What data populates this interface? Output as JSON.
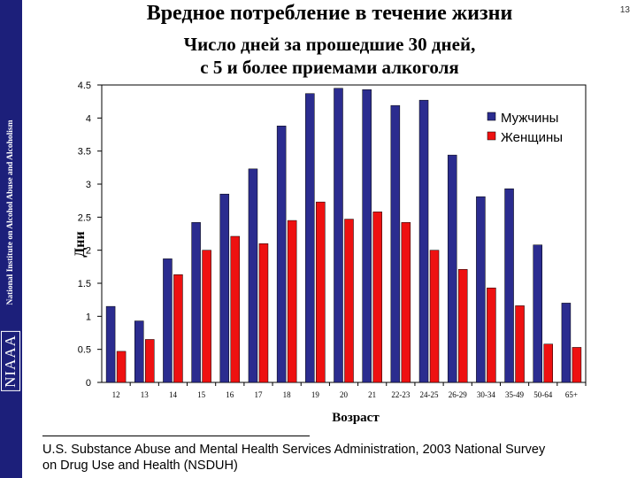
{
  "sidebar": {
    "institute": "National Institute on Alcohol Abuse and Alcoholism",
    "logo": "NIAAA"
  },
  "page_number": "13",
  "chart_data": {
    "type": "bar",
    "title": "Вредное потребление в течение жизни",
    "subtitle_line1": "Число дней за прошедшие 30 дней,",
    "subtitle_line2": "с 5 и более приемами алкоголя",
    "xlabel": "Возраст",
    "ylabel": "Дни",
    "ylim": [
      0,
      4.5
    ],
    "yticks": [
      "0",
      "0.5",
      "1",
      "1.5",
      "2",
      "2.5",
      "3",
      "3.5",
      "4",
      "4.5"
    ],
    "categories": [
      "12",
      "13",
      "14",
      "15",
      "16",
      "17",
      "18",
      "19",
      "20",
      "21",
      "22-23",
      "24-25",
      "26-29",
      "30-34",
      "35-49",
      "50-64",
      "65+"
    ],
    "series": [
      {
        "name": "Мужчины",
        "color": "#2b2c8f",
        "values": [
          1.15,
          0.93,
          1.87,
          2.42,
          2.85,
          3.23,
          3.88,
          4.37,
          4.45,
          4.43,
          4.19,
          4.27,
          3.44,
          2.81,
          2.93,
          2.08,
          1.2
        ]
      },
      {
        "name": "Женщины",
        "color": "#ee1111",
        "values": [
          0.47,
          0.65,
          1.63,
          2.0,
          2.21,
          2.1,
          2.45,
          2.73,
          2.47,
          2.58,
          2.42,
          2.0,
          1.71,
          1.43,
          1.16,
          0.58,
          0.53
        ]
      }
    ],
    "legend_position": "top-right",
    "grid": false
  },
  "source": {
    "line1": "U.S. Substance Abuse and Mental Health Services Administration, 2003 National Survey",
    "line2": "on Drug Use and Health (NSDUH)"
  }
}
